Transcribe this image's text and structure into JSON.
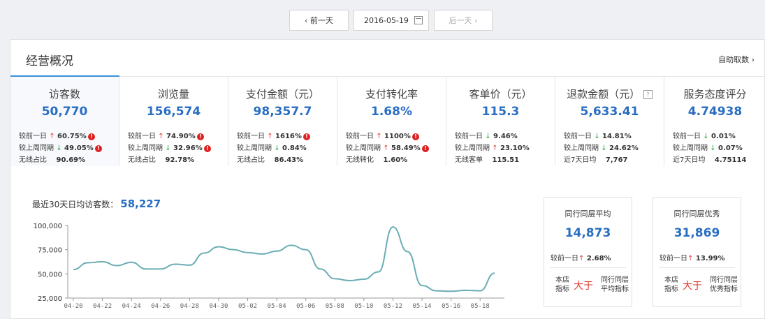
{
  "nav": {
    "prev_label": "‹  前一天",
    "date": "2016-05-19",
    "next_label": "后一天  ›"
  },
  "panel": {
    "title": "经营概况",
    "self_link": "自助取数  ›"
  },
  "metrics": [
    {
      "title": "访客数",
      "value": "50,770",
      "rows": [
        {
          "label": "较前一日",
          "dir": "up",
          "text": "60.75%",
          "warn": true
        },
        {
          "label": "较上周同期",
          "dir": "down",
          "text": "49.05%",
          "warn": true
        },
        {
          "label": "无线占比",
          "dir": "",
          "text": "90.69%",
          "warn": false
        }
      ]
    },
    {
      "title": "浏览量",
      "value": "156,574",
      "rows": [
        {
          "label": "较前一日",
          "dir": "up",
          "text": "74.90%",
          "warn": true
        },
        {
          "label": "较上周同期",
          "dir": "down",
          "text": "32.96%",
          "warn": true
        },
        {
          "label": "无线占比",
          "dir": "",
          "text": "92.78%",
          "warn": false
        }
      ]
    },
    {
      "title": "支付金额（元）",
      "value": "98,357.7",
      "rows": [
        {
          "label": "较前一日",
          "dir": "up",
          "text": "1616%",
          "warn": true
        },
        {
          "label": "较上周同期",
          "dir": "down",
          "text": "0.84%",
          "warn": false
        },
        {
          "label": "无线占比",
          "dir": "",
          "text": "86.43%",
          "warn": false
        }
      ]
    },
    {
      "title": "支付转化率",
      "value": "1.68%",
      "rows": [
        {
          "label": "较前一日",
          "dir": "up",
          "text": "1100%",
          "warn": true
        },
        {
          "label": "较上周同期",
          "dir": "up",
          "text": "58.49%",
          "warn": true
        },
        {
          "label": "无线转化",
          "dir": "",
          "text": "1.60%",
          "warn": false
        }
      ]
    },
    {
      "title": "客单价（元）",
      "value": "115.3",
      "rows": [
        {
          "label": "较前一日",
          "dir": "down",
          "text": "9.46%",
          "warn": false
        },
        {
          "label": "较上周同期",
          "dir": "up",
          "text": "23.10%",
          "warn": false
        },
        {
          "label": "无线客单",
          "dir": "",
          "text": "115.51",
          "warn": false
        }
      ]
    },
    {
      "title": "退款金额（元）",
      "value": "5,633.41",
      "help": true,
      "rows": [
        {
          "label": "较前一日",
          "dir": "down",
          "text": "14.81%",
          "warn": false
        },
        {
          "label": "较上周同期",
          "dir": "down",
          "text": "24.62%",
          "warn": false
        },
        {
          "label": "近7天日均",
          "dir": "",
          "text": "7,767",
          "warn": false
        }
      ]
    },
    {
      "title": "服务态度评分",
      "value": "4.74938",
      "rows": [
        {
          "label": "较前一日",
          "dir": "down",
          "text": "0.01%",
          "warn": false
        },
        {
          "label": "较上周同期",
          "dir": "down",
          "text": "0.07%",
          "warn": false
        },
        {
          "label": "近7天日均",
          "dir": "",
          "text": "4.75114",
          "warn": false
        }
      ]
    }
  ],
  "chart_title": {
    "label": "最近30天日均访客数：",
    "value": "58,227"
  },
  "chart_data": {
    "type": "line",
    "x": [
      "04-20",
      "04-21",
      "04-22",
      "04-23",
      "04-24",
      "04-25",
      "04-26",
      "04-27",
      "04-28",
      "04-29",
      "04-30",
      "05-01",
      "05-02",
      "05-03",
      "05-04",
      "05-05",
      "05-06",
      "05-07",
      "05-08",
      "05-09",
      "05-10",
      "05-11",
      "05-12",
      "05-13",
      "05-14",
      "05-15",
      "05-16",
      "05-17",
      "05-18",
      "05-19"
    ],
    "x_tick_labels": [
      "04-20",
      "04-22",
      "04-24",
      "04-26",
      "04-28",
      "04-30",
      "05-02",
      "05-04",
      "05-06",
      "05-08",
      "05-10",
      "05-12",
      "05-14",
      "05-16",
      "05-18"
    ],
    "series": [
      {
        "values": [
          54500,
          61500,
          62500,
          58500,
          62000,
          55000,
          55000,
          60000,
          59000,
          71500,
          78000,
          75000,
          72000,
          70500,
          73500,
          79500,
          75000,
          55000,
          45000,
          43000,
          44500,
          52000,
          98500,
          73000,
          38000,
          32500,
          32000,
          33000,
          32500,
          50770
        ],
        "color": "#6aadb4"
      }
    ],
    "ylim": [
      25000,
      100000
    ],
    "y_ticks": [
      "25,000",
      "50,000",
      "75,000",
      "100,000"
    ],
    "grid": false
  },
  "peers": [
    {
      "title": "同行同层平均",
      "value": "14,873",
      "cmp_label": "较前一日",
      "cmp_dir": "up",
      "cmp_text": "2.68%",
      "left": "本店\n指标",
      "mid": "大于",
      "right": "同行同层\n平均指标"
    },
    {
      "title": "同行同层优秀",
      "value": "31,869",
      "cmp_label": "较前一日",
      "cmp_dir": "up",
      "cmp_text": "13.99%",
      "left": "本店\n指标",
      "mid": "大于",
      "right": "同行同层\n优秀指标"
    }
  ],
  "colors": {
    "accent": "#2a6ec2",
    "up": "#e13a2d",
    "down": "#25a136",
    "line": "#6aadb4"
  }
}
